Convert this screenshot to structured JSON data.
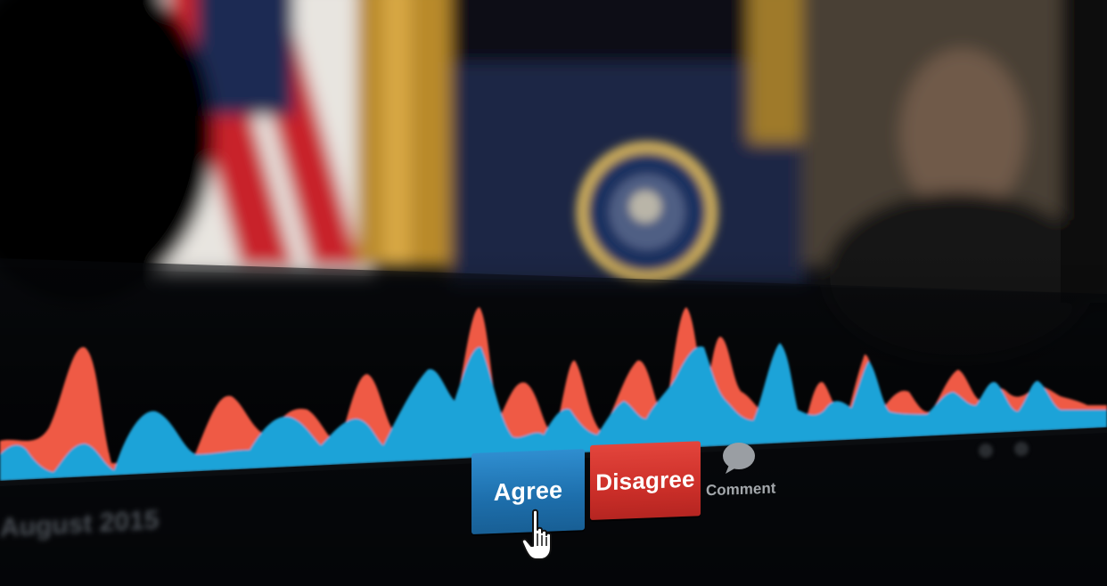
{
  "controls": {
    "agree_label": "Agree",
    "disagree_label": "Disagree",
    "comment_label": "Comment"
  },
  "video": {
    "caption": "August 2015"
  },
  "sentiment": {
    "agree_color": "#1fa3d8",
    "disagree_color": "#ef5a45"
  },
  "icons": {
    "comment": "speech-bubble-icon",
    "cursor": "hand-pointer-icon"
  }
}
